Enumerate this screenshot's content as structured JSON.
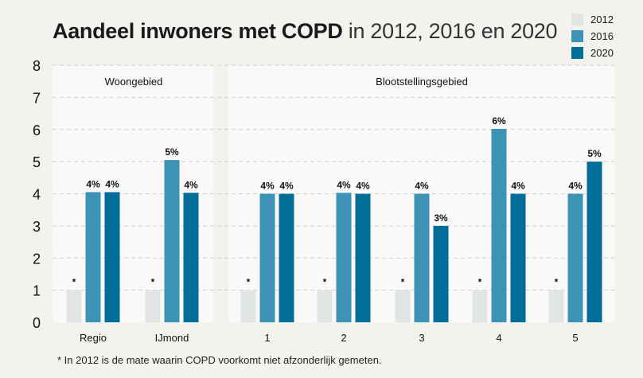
{
  "title": {
    "bold": "Aandeel inwoners met COPD",
    "rest": "in 2012, 2016 en 2020"
  },
  "footnote": "* In 2012 is de mate waarin COPD voorkomt niet afzonderlijk gemeten.",
  "chart_data": {
    "type": "bar",
    "title": "Aandeel inwoners met COPD in 2012, 2016 en 2020",
    "ylim": [
      0,
      8
    ],
    "yticks": [
      "0",
      "1",
      "2",
      "3",
      "4",
      "5",
      "6",
      "7",
      "8"
    ],
    "groups": [
      {
        "label": "Woongebied",
        "categories": [
          "Regio",
          "IJmond"
        ]
      },
      {
        "label": "Blootstellingsgebied",
        "categories": [
          "1",
          "2",
          "3",
          "4",
          "5"
        ]
      }
    ],
    "categories": [
      "Regio",
      "IJmond",
      "1",
      "2",
      "3",
      "4",
      "5"
    ],
    "series": [
      {
        "name": "2012",
        "color": "#e1e4e4",
        "values": [
          1,
          1,
          1,
          1,
          1,
          1,
          1
        ],
        "labels": [
          "*",
          "*",
          "*",
          "*",
          "*",
          "*",
          "*"
        ]
      },
      {
        "name": "2016",
        "color": "#3c93b6",
        "values": [
          4.05,
          5.05,
          4.0,
          4.03,
          4.0,
          6.02,
          4.0
        ],
        "labels": [
          "4%",
          "5%",
          "4%",
          "4%",
          "4%",
          "6%",
          "4%"
        ]
      },
      {
        "name": "2020",
        "color": "#006e98",
        "values": [
          4.05,
          4.03,
          4.0,
          4.0,
          3.0,
          4.0,
          5.0
        ],
        "labels": [
          "4%",
          "4%",
          "4%",
          "4%",
          "3%",
          "4%",
          "5%"
        ]
      }
    ]
  }
}
